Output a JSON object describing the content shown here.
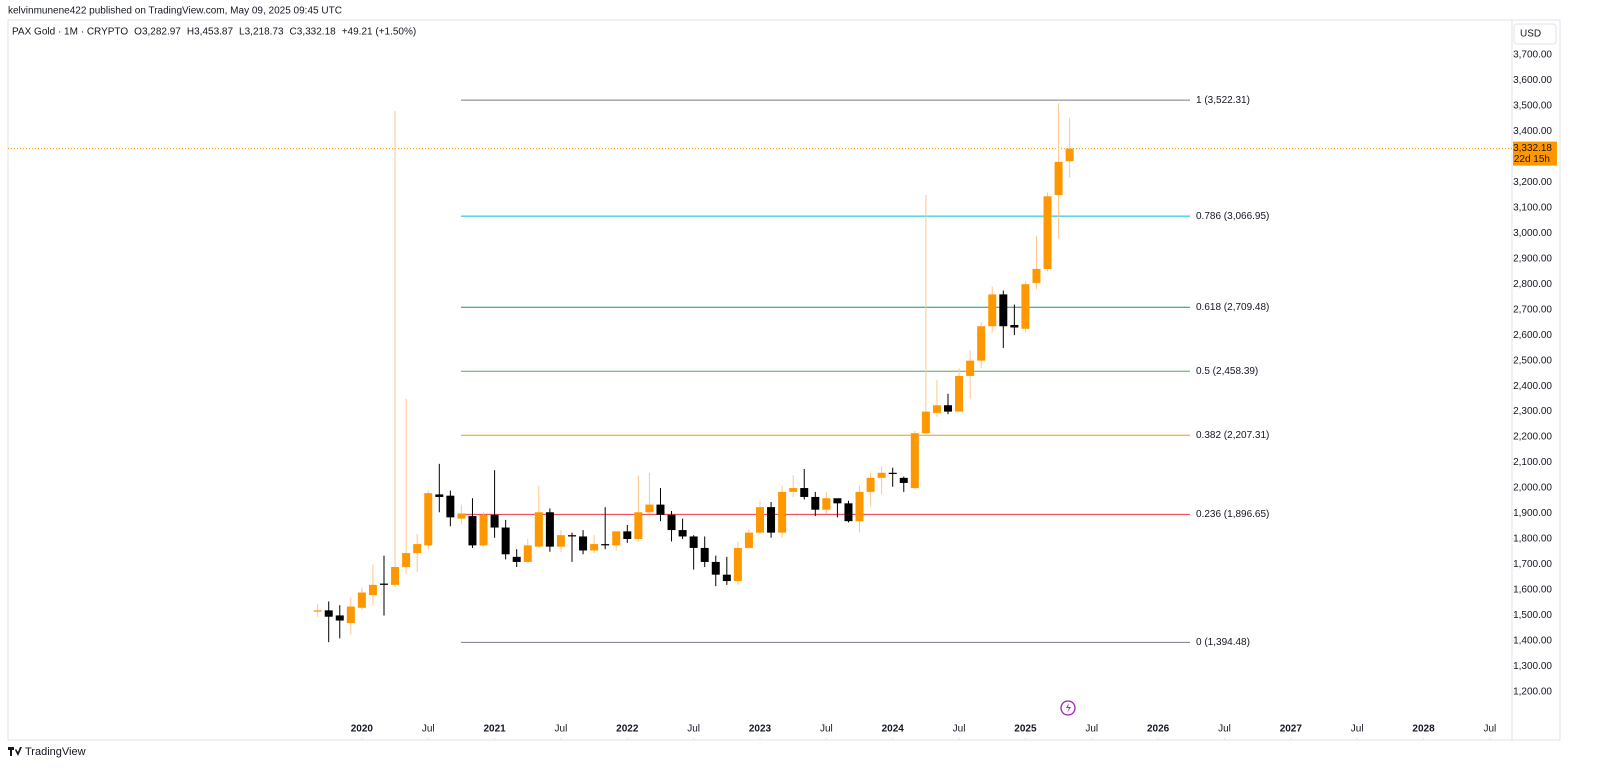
{
  "header": {
    "publisher": "kelvinmunene422 published on TradingView.com, May 09, 2025 09:45 UTC",
    "symbol": "PAX Gold · 1M · CRYPTO",
    "ohlc": [
      {
        "key": "O",
        "value": "3,282.97"
      },
      {
        "key": "H",
        "value": "3,453.87"
      },
      {
        "key": "L",
        "value": "3,218.73"
      },
      {
        "key": "C",
        "value": "3,332.18"
      }
    ],
    "change": "+49.21 (+1.50%)"
  },
  "footer": {
    "brand": "TradingView"
  },
  "chart_data": {
    "type": "candlestick",
    "x": [
      "2019-09",
      "2019-10",
      "2019-11",
      "2019-12",
      "2020-01",
      "2020-02",
      "2020-03",
      "2020-04",
      "2020-05",
      "2020-06",
      "2020-07",
      "2020-08",
      "2020-09",
      "2020-10",
      "2020-11",
      "2020-12",
      "2021-01",
      "2021-02",
      "2021-03",
      "2021-04",
      "2021-05",
      "2021-06",
      "2021-07",
      "2021-08",
      "2021-09",
      "2021-10",
      "2021-11",
      "2021-12",
      "2022-01",
      "2022-02",
      "2022-03",
      "2022-04",
      "2022-05",
      "2022-06",
      "2022-07",
      "2022-08",
      "2022-09",
      "2022-10",
      "2022-11",
      "2022-12",
      "2023-01",
      "2023-02",
      "2023-03",
      "2023-04",
      "2023-05",
      "2023-06",
      "2023-07",
      "2023-08",
      "2023-09",
      "2023-10",
      "2023-11",
      "2023-12",
      "2024-01",
      "2024-02",
      "2024-03",
      "2024-04",
      "2024-05",
      "2024-06",
      "2024-07",
      "2024-08",
      "2024-09",
      "2024-10",
      "2024-11",
      "2024-12",
      "2025-01",
      "2025-02",
      "2025-03",
      "2025-04",
      "2025-05"
    ],
    "open": [
      1515,
      1520,
      1500,
      1470,
      1530,
      1580,
      1625,
      1620,
      1690,
      1745,
      1775,
      1975,
      1970,
      1880,
      1890,
      1775,
      1895,
      1845,
      1730,
      1710,
      1770,
      1905,
      1770,
      1815,
      1810,
      1755,
      1780,
      1775,
      1830,
      1800,
      1905,
      1935,
      1895,
      1835,
      1810,
      1765,
      1710,
      1660,
      1635,
      1765,
      1825,
      1925,
      1825,
      1985,
      2000,
      1965,
      1915,
      1960,
      1940,
      1870,
      1985,
      2040,
      2060,
      2040,
      2000,
      2215,
      2295,
      2325,
      2300,
      2440,
      2500,
      2635,
      2760,
      2640,
      2625,
      2805,
      2860,
      3150,
      3282.97
    ],
    "high": [
      1545,
      1555,
      1540,
      1570,
      1610,
      1700,
      1735,
      3480,
      2350,
      1820,
      1990,
      2095,
      1990,
      1935,
      1960,
      1905,
      2070,
      1875,
      1760,
      1800,
      2010,
      1920,
      1835,
      1825,
      1835,
      1815,
      1925,
      1830,
      1855,
      2050,
      2060,
      2000,
      1910,
      1880,
      1815,
      1810,
      1735,
      1730,
      1790,
      1840,
      1950,
      1945,
      2010,
      2050,
      2075,
      1985,
      1985,
      1955,
      1950,
      2010,
      2060,
      2085,
      2080,
      2045,
      2225,
      3150,
      2425,
      2370,
      2470,
      2540,
      2650,
      2790,
      2775,
      2720,
      2810,
      2990,
      3160,
      3510,
      3453.87
    ],
    "low": [
      1495,
      1395,
      1410,
      1425,
      1520,
      1540,
      1500,
      1610,
      1665,
      1670,
      1760,
      1905,
      1850,
      1860,
      1765,
      1770,
      1805,
      1720,
      1690,
      1705,
      1765,
      1750,
      1750,
      1710,
      1740,
      1745,
      1760,
      1755,
      1785,
      1790,
      1900,
      1870,
      1790,
      1800,
      1680,
      1690,
      1615,
      1620,
      1620,
      1760,
      1820,
      1805,
      1805,
      1965,
      1955,
      1890,
      1900,
      1885,
      1865,
      1825,
      1930,
      1975,
      2005,
      1985,
      1995,
      2215,
      2280,
      2290,
      2300,
      2350,
      2470,
      2610,
      2550,
      2600,
      2610,
      2780,
      2850,
      2980,
      3218.73
    ],
    "close": [
      1520,
      1495,
      1480,
      1535,
      1590,
      1620,
      1620,
      1690,
      1745,
      1780,
      1980,
      1965,
      1885,
      1900,
      1775,
      1895,
      1845,
      1740,
      1710,
      1775,
      1905,
      1770,
      1815,
      1810,
      1755,
      1780,
      1775,
      1830,
      1800,
      1905,
      1935,
      1895,
      1835,
      1810,
      1765,
      1710,
      1660,
      1635,
      1765,
      1825,
      1925,
      1825,
      1985,
      2000,
      1965,
      1915,
      1960,
      1940,
      1870,
      1985,
      2040,
      2060,
      2055,
      2020,
      2215,
      2300,
      2325,
      2300,
      2440,
      2500,
      2635,
      2760,
      2635,
      2630,
      2800,
      2860,
      3145,
      3280,
      3332.18
    ],
    "up_color": "#ff9800",
    "up_wick_color": "#ffc58a",
    "down_color": "#000000",
    "xlim": [
      "2017-05",
      "2028-09"
    ],
    "xticks": [
      {
        "value": "2020-01",
        "label": "2020"
      },
      {
        "value": "2020-07",
        "label": "Jul"
      },
      {
        "value": "2021-01",
        "label": "2021"
      },
      {
        "value": "2021-07",
        "label": "Jul"
      },
      {
        "value": "2022-01",
        "label": "2022"
      },
      {
        "value": "2022-07",
        "label": "Jul"
      },
      {
        "value": "2023-01",
        "label": "2023"
      },
      {
        "value": "2023-07",
        "label": "Jul"
      },
      {
        "value": "2024-01",
        "label": "2024"
      },
      {
        "value": "2024-07",
        "label": "Jul"
      },
      {
        "value": "2025-01",
        "label": "2025"
      },
      {
        "value": "2025-07",
        "label": "Jul"
      },
      {
        "value": "2026-01",
        "label": "2026"
      },
      {
        "value": "2026-07",
        "label": "Jul"
      },
      {
        "value": "2027-01",
        "label": "2027"
      },
      {
        "value": "2027-07",
        "label": "Jul"
      },
      {
        "value": "2028-01",
        "label": "2028"
      },
      {
        "value": "2028-07",
        "label": "Jul"
      }
    ],
    "ylim": [
      1019,
      3884
    ],
    "yticks": [
      {
        "value": 1200,
        "label": "1,200.00"
      },
      {
        "value": 1300,
        "label": "1,300.00"
      },
      {
        "value": 1400,
        "label": "1,400.00"
      },
      {
        "value": 1500,
        "label": "1,500.00"
      },
      {
        "value": 1600,
        "label": "1,600.00"
      },
      {
        "value": 1700,
        "label": "1,700.00"
      },
      {
        "value": 1800,
        "label": "1,800.00"
      },
      {
        "value": 1900,
        "label": "1,900.00"
      },
      {
        "value": 2000,
        "label": "2,000.00"
      },
      {
        "value": 2100,
        "label": "2,100.00"
      },
      {
        "value": 2200,
        "label": "2,200.00"
      },
      {
        "value": 2300,
        "label": "2,300.00"
      },
      {
        "value": 2400,
        "label": "2,400.00"
      },
      {
        "value": 2500,
        "label": "2,500.00"
      },
      {
        "value": 2600,
        "label": "2,600.00"
      },
      {
        "value": 2700,
        "label": "2,700.00"
      },
      {
        "value": 2800,
        "label": "2,800.00"
      },
      {
        "value": 2900,
        "label": "2,900.00"
      },
      {
        "value": 3000,
        "label": "3,000.00"
      },
      {
        "value": 3100,
        "label": "3,100.00"
      },
      {
        "value": 3200,
        "label": "3,200.00"
      },
      {
        "value": 3300,
        "label": "3,300.00"
      },
      {
        "value": 3400,
        "label": "3,400.00"
      },
      {
        "value": 3500,
        "label": "3,500.00"
      },
      {
        "value": 3600,
        "label": "3,600.00"
      },
      {
        "value": 3700,
        "label": "3,700.00"
      }
    ],
    "fib_levels": [
      {
        "label": "1 (3,522.31)",
        "value": 3522.31,
        "color": "#787b86"
      },
      {
        "label": "0.786 (3,066.95)",
        "value": 3066.95,
        "color": "#00bcd4"
      },
      {
        "label": "0.618 (2,709.48)",
        "value": 2709.48,
        "color": "#089981"
      },
      {
        "label": "0.5 (2,458.39)",
        "value": 2458.39,
        "color": "#4caf50"
      },
      {
        "label": "0.382 (2,207.31)",
        "value": 2207.31,
        "color": "#ff9800"
      },
      {
        "label": "0.236 (1,896.65)",
        "value": 1896.65,
        "color": "#f23645"
      },
      {
        "label": "0 (1,394.48)",
        "value": 1394.48,
        "color": "#787b86"
      }
    ],
    "last_price": {
      "value": 3332.18,
      "label": "3,332.18",
      "countdown": "22d 15h"
    },
    "currency": "USD"
  }
}
